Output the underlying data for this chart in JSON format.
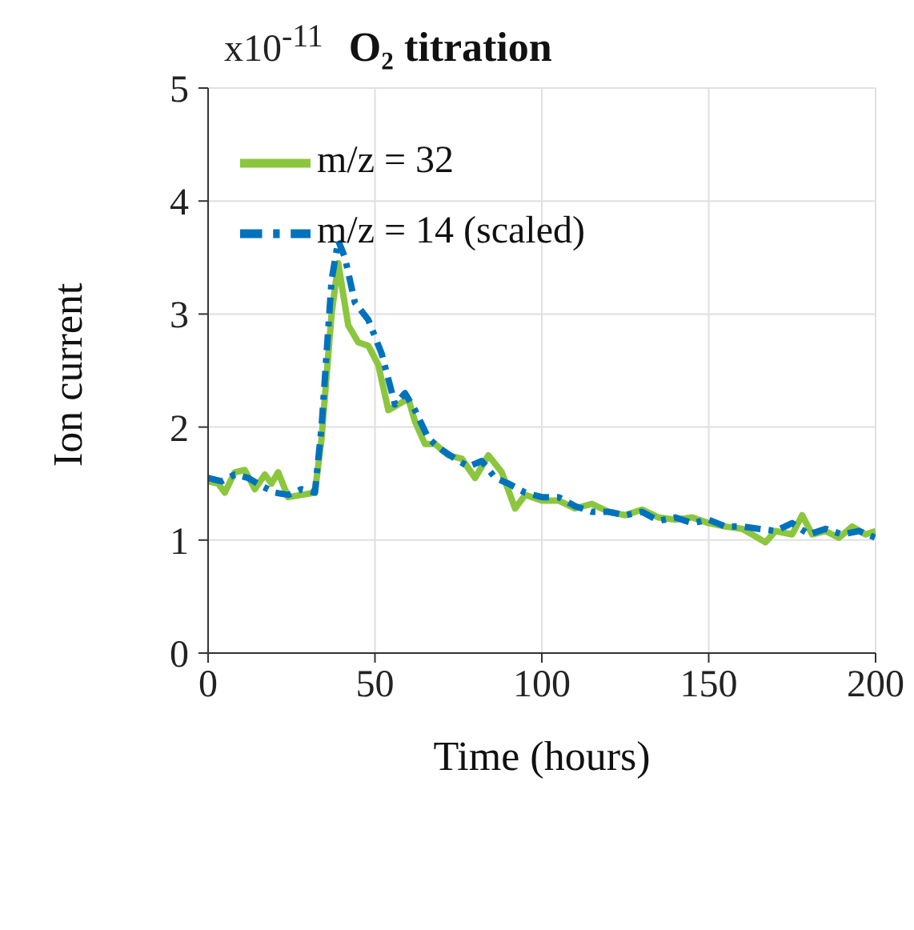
{
  "chart_data": {
    "type": "line",
    "title": "O₂ titration",
    "xlabel": "Time (hours)",
    "ylabel": "Ion current",
    "annotations": [
      "x10$^{-11}$"
    ],
    "xlim": [
      0,
      200
    ],
    "xticks": [
      0,
      50,
      100,
      150,
      200
    ],
    "ylim": [
      0,
      5
    ],
    "yticks": [
      0,
      1,
      2,
      3,
      4,
      5
    ],
    "grid": true,
    "legend": "top left",
    "series": [
      {
        "name": "m/z = 32",
        "color": "#8cc63f",
        "line_style": "solid",
        "x": [
          0,
          3,
          5,
          8,
          11,
          14,
          17,
          19,
          21,
          24,
          28,
          32,
          34,
          37,
          39,
          42,
          45,
          48,
          51,
          54,
          57,
          60,
          62,
          65,
          68,
          72,
          76,
          80,
          84,
          88,
          92,
          95,
          100,
          105,
          110,
          115,
          120,
          125,
          130,
          135,
          140,
          145,
          150,
          155,
          160,
          163,
          167,
          170,
          175,
          178,
          181,
          185,
          189,
          193,
          197,
          200
        ],
        "values": [
          1.52,
          1.5,
          1.42,
          1.6,
          1.62,
          1.45,
          1.58,
          1.5,
          1.6,
          1.38,
          1.4,
          1.42,
          1.9,
          3.0,
          3.45,
          2.9,
          2.75,
          2.72,
          2.55,
          2.15,
          2.2,
          2.25,
          2.05,
          1.85,
          1.85,
          1.75,
          1.72,
          1.55,
          1.75,
          1.6,
          1.28,
          1.4,
          1.35,
          1.35,
          1.28,
          1.32,
          1.25,
          1.22,
          1.27,
          1.2,
          1.18,
          1.2,
          1.15,
          1.12,
          1.1,
          1.05,
          0.98,
          1.08,
          1.05,
          1.22,
          1.05,
          1.08,
          1.02,
          1.12,
          1.05,
          1.08
        ]
      },
      {
        "name": "m/z = 14 (scaled)",
        "color": "#0072bd",
        "line_style": "dashed",
        "x": [
          0,
          4,
          8,
          12,
          16,
          20,
          24,
          28,
          32,
          34,
          37,
          39,
          41,
          44,
          48,
          52,
          56,
          59,
          62,
          66,
          70,
          74,
          78,
          82,
          86,
          90,
          95,
          100,
          105,
          110,
          115,
          120,
          125,
          130,
          135,
          140,
          145,
          150,
          155,
          160,
          165,
          170,
          175,
          180,
          185,
          190,
          195,
          200
        ],
        "values": [
          1.55,
          1.52,
          1.58,
          1.55,
          1.48,
          1.42,
          1.4,
          1.45,
          1.42,
          2.0,
          3.3,
          3.65,
          3.5,
          3.1,
          2.95,
          2.65,
          2.2,
          2.3,
          2.15,
          1.9,
          1.8,
          1.72,
          1.65,
          1.7,
          1.55,
          1.5,
          1.42,
          1.38,
          1.38,
          1.3,
          1.25,
          1.25,
          1.22,
          1.25,
          1.17,
          1.2,
          1.15,
          1.18,
          1.12,
          1.12,
          1.1,
          1.08,
          1.15,
          1.05,
          1.1,
          1.05,
          1.08,
          1.02
        ]
      }
    ]
  }
}
